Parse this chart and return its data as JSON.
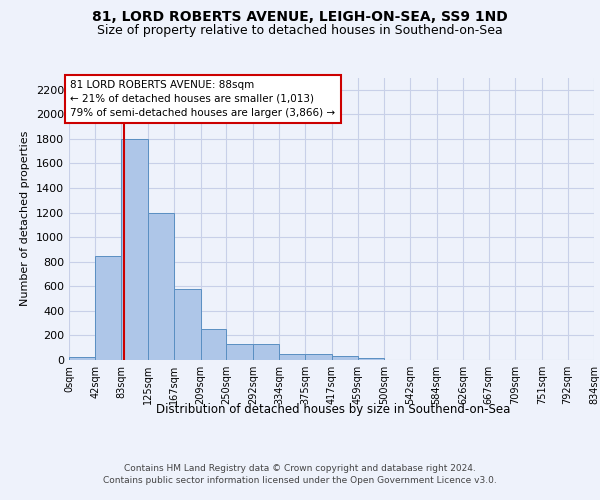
{
  "title1": "81, LORD ROBERTS AVENUE, LEIGH-ON-SEA, SS9 1ND",
  "title2": "Size of property relative to detached houses in Southend-on-Sea",
  "xlabel": "Distribution of detached houses by size in Southend-on-Sea",
  "ylabel": "Number of detached properties",
  "annotation_line1": "81 LORD ROBERTS AVENUE: 88sqm",
  "annotation_line2": "← 21% of detached houses are smaller (1,013)",
  "annotation_line3": "79% of semi-detached houses are larger (3,866) →",
  "bin_edges": [
    0,
    42,
    83,
    125,
    167,
    209,
    250,
    292,
    334,
    375,
    417,
    459,
    500,
    542,
    584,
    626,
    667,
    709,
    751,
    792,
    834
  ],
  "bar_heights": [
    25,
    850,
    1800,
    1200,
    580,
    255,
    130,
    130,
    45,
    45,
    30,
    20,
    0,
    0,
    0,
    0,
    0,
    0,
    0,
    0
  ],
  "bar_color": "#aec6e8",
  "bar_edge_color": "#5a8fc2",
  "property_size": 88,
  "red_line_color": "#cc0000",
  "annotation_box_color": "#ffffff",
  "annotation_box_edge": "#cc0000",
  "ylim": [
    0,
    2300
  ],
  "yticks": [
    0,
    200,
    400,
    600,
    800,
    1000,
    1200,
    1400,
    1600,
    1800,
    2000,
    2200
  ],
  "background_color": "#eef2fb",
  "grid_color": "#c8d0e8",
  "footer1": "Contains HM Land Registry data © Crown copyright and database right 2024.",
  "footer2": "Contains public sector information licensed under the Open Government Licence v3.0."
}
